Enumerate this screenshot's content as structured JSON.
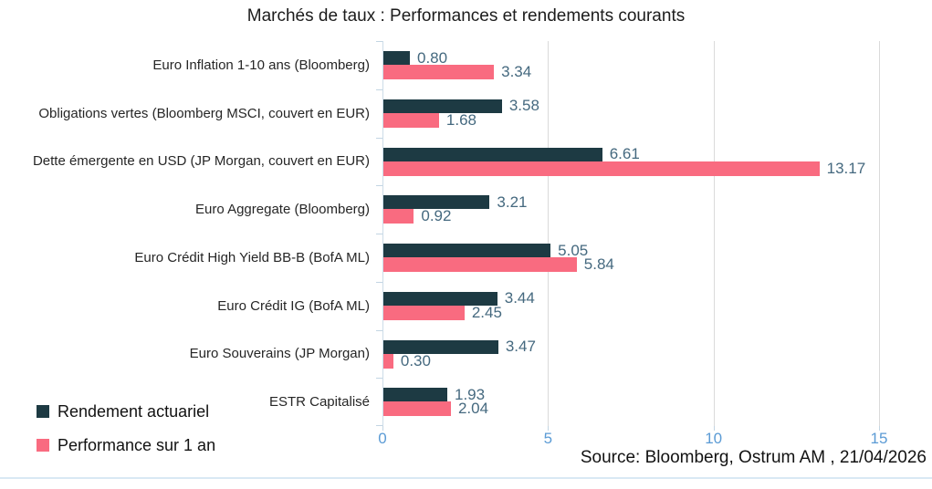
{
  "title": "Marchés de taux : Performances et rendements courants",
  "source": "Source: Bloomberg, Ostrum AM , 21/04/2026",
  "colors": {
    "series_rendement": "#1d3a43",
    "series_performance": "#f96b80",
    "value_label": "#45697f",
    "axis_tick_label": "#5b9bd5",
    "gridline": "#dadada",
    "text": "#1c1c1c"
  },
  "legend": {
    "items": [
      {
        "label": "Rendement actuariel",
        "color": "#1d3a43"
      },
      {
        "label": "Performance sur 1 an",
        "color": "#f96b80"
      }
    ]
  },
  "chart_data": {
    "type": "bar",
    "orientation": "horizontal",
    "title": "Marchés de taux : Performances et rendements courants",
    "categories": [
      "Euro Inflation 1-10 ans (Bloomberg)",
      "Obligations vertes (Bloomberg MSCI, couvert en EUR)",
      "Dette émergente en USD (JP Morgan, couvert en EUR)",
      "Euro Aggregate (Bloomberg)",
      "Euro Crédit High Yield BB-B (BofA ML)",
      "Euro Crédit IG (BofA ML)",
      "Euro Souverains (JP Morgan)",
      "ESTR Capitalisé"
    ],
    "series": [
      {
        "name": "Rendement actuariel",
        "color": "#1d3a43",
        "values": [
          0.8,
          3.58,
          6.61,
          3.21,
          5.05,
          3.44,
          3.47,
          1.93
        ]
      },
      {
        "name": "Performance sur 1 an",
        "color": "#f96b80",
        "values": [
          3.34,
          1.68,
          13.17,
          0.92,
          5.84,
          2.45,
          0.3,
          2.04
        ]
      }
    ],
    "xlim": [
      0,
      15
    ],
    "xticks": [
      0,
      5,
      10,
      15
    ],
    "grid": true,
    "value_labels": true,
    "legend_position": "bottom-left"
  }
}
